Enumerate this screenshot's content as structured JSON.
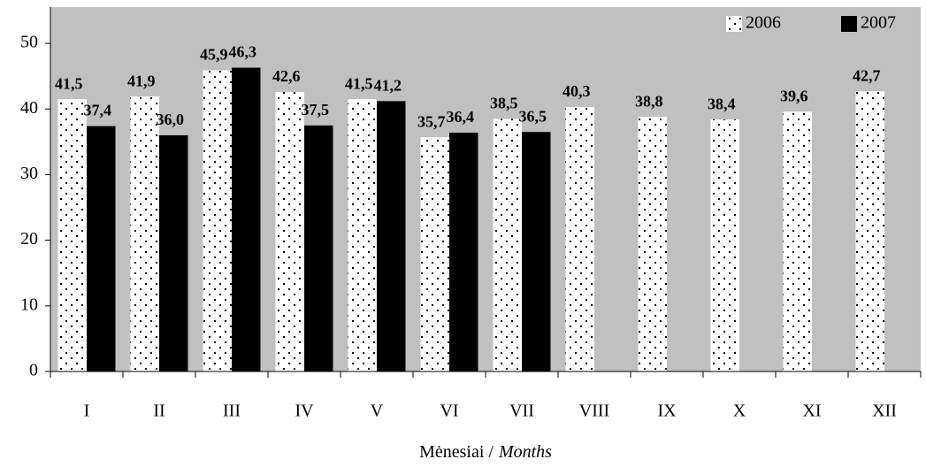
{
  "chart_data": {
    "type": "bar",
    "x_label": [
      "Mėnesiai /",
      "Months"
    ],
    "categories": [
      "I",
      "II",
      "III",
      "IV",
      "V",
      "VI",
      "VII",
      "VIII",
      "IX",
      "X",
      "XI",
      "XII"
    ],
    "series": [
      {
        "name": "2006",
        "color": "#ffffff",
        "pattern": "dots",
        "values": [
          41.5,
          41.9,
          45.9,
          42.6,
          41.5,
          35.7,
          38.5,
          40.3,
          38.8,
          38.4,
          39.6,
          42.7
        ],
        "value_labels": [
          "41,5",
          "41,9",
          "45,9",
          "42,6",
          "41,5",
          "35,7",
          "38,5",
          "40,3",
          "38,8",
          "38,4",
          "39,6",
          "42,7"
        ]
      },
      {
        "name": "2007",
        "color": "#000000",
        "values": [
          37.4,
          36.0,
          46.3,
          37.5,
          41.2,
          36.4,
          36.5,
          null,
          null,
          null,
          null,
          null
        ],
        "value_labels": [
          "37,4",
          "36,0",
          "46,3",
          "37,5",
          "41,2",
          "36,4",
          "36,5",
          null,
          null,
          null,
          null,
          null
        ]
      }
    ],
    "ylim": [
      0,
      55
    ],
    "yticks": [
      0,
      10,
      20,
      30,
      40,
      50
    ],
    "background": "#c0c0c0",
    "legend": "top-right"
  }
}
